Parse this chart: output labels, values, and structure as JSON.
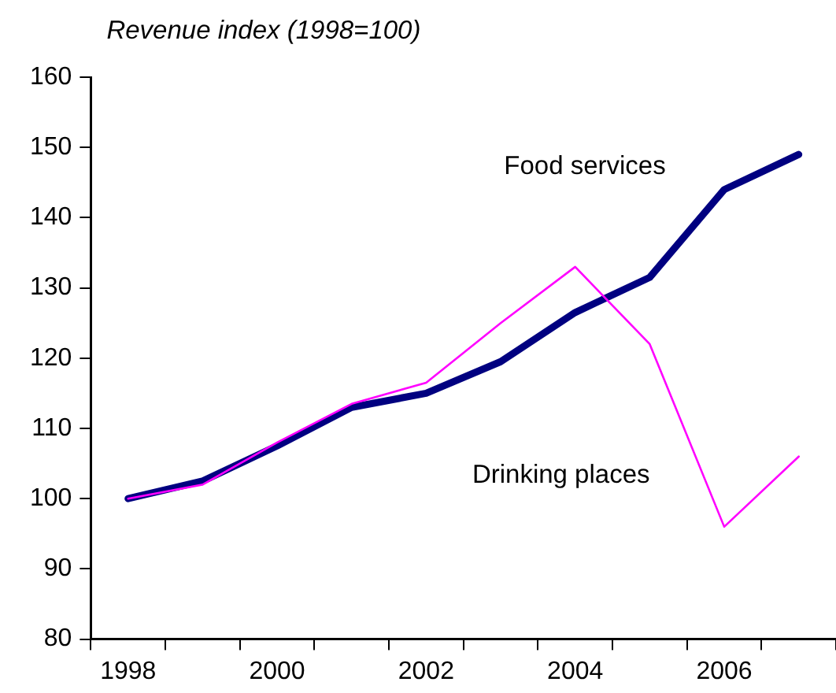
{
  "chart_data": {
    "type": "line",
    "ylabel": "Revenue index (1998=100)",
    "categories": [
      "1998",
      null,
      "2000",
      null,
      "2002",
      null,
      "2004",
      null,
      "2006",
      null
    ],
    "series": [
      {
        "name": "Food services",
        "color": "#000080",
        "values": [
          100,
          102.5,
          107.5,
          113,
          115,
          119.5,
          126.5,
          131.5,
          144,
          149
        ]
      },
      {
        "name": "Drinking places",
        "color": "#ff00ff",
        "values": [
          100,
          102,
          108,
          113.5,
          116.5,
          125,
          133,
          122,
          96,
          106
        ]
      }
    ],
    "ylim": [
      80,
      160
    ],
    "yticks": [
      80,
      90,
      100,
      110,
      120,
      130,
      140,
      150,
      160
    ],
    "marker": "none",
    "line_style": "solid"
  }
}
